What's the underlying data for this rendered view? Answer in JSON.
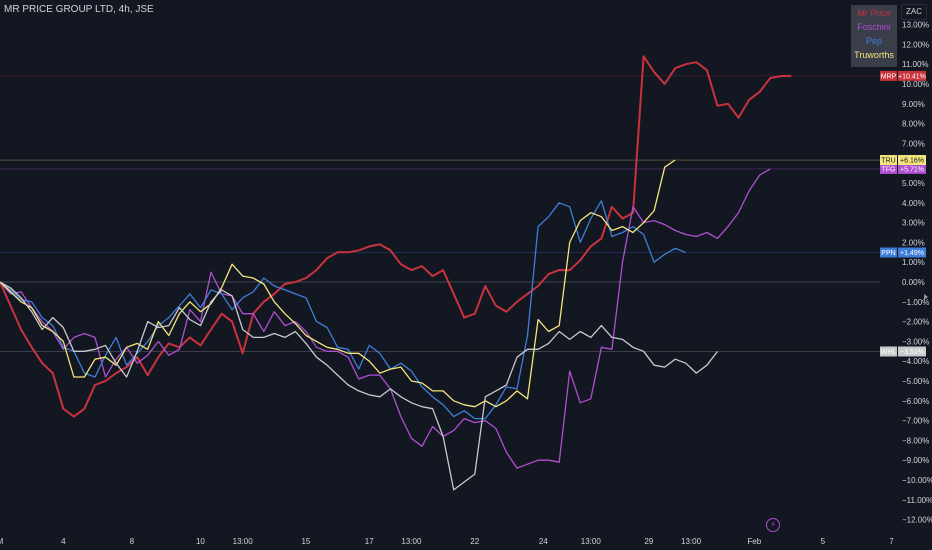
{
  "header": {
    "title": "MR PRICE GROUP LTD, 4h, JSE",
    "currency": "ZAC"
  },
  "legend": {
    "items": [
      "Mr Price",
      "Foschini",
      "Pep",
      "Truworths"
    ]
  },
  "colors": {
    "background": "#131722",
    "mrp": "#c9333d",
    "tfg": "#b04fd0",
    "ppn": "#3f7ed8",
    "tru": "#f4e67c",
    "whl": "#c8c9cc",
    "grid_line": "#9598a1"
  },
  "icons": [
    "flash-icon",
    "cursor-arrow-icon"
  ],
  "chart_data": {
    "type": "line",
    "title": "",
    "xlabel": "",
    "ylabel": "",
    "ylim": [
      -12.5,
      13.5
    ],
    "y_ticks": [
      13,
      12,
      11,
      10,
      9,
      8,
      7,
      6,
      5,
      4,
      3,
      2,
      1,
      0,
      -1,
      -2,
      -3,
      -4,
      -5,
      -6,
      -7,
      -8,
      -9,
      -10,
      -11,
      -12
    ],
    "y_tick_labels": [
      "13.00%",
      "12.00%",
      "11.00%",
      "10.00%",
      "9.00%",
      "8.00%",
      "7.00%",
      "6.00%",
      "5.00%",
      "4.00%",
      "3.00%",
      "2.00%",
      "1.00%",
      "0.00%",
      "−1.00%",
      "−2.00%",
      "−3.00%",
      "−4.00%",
      "−5.00%",
      "−6.00%",
      "−7.00%",
      "−8.00%",
      "−9.00%",
      "−10.00%",
      "−11.00%",
      "−12.00%"
    ],
    "x_ticks": [
      {
        "label": "M",
        "bar": 0
      },
      {
        "label": "4",
        "bar": 6
      },
      {
        "label": "8",
        "bar": 12.5
      },
      {
        "label": "10",
        "bar": 19
      },
      {
        "label": "13:00",
        "bar": 23
      },
      {
        "label": "15",
        "bar": 29
      },
      {
        "label": "17",
        "bar": 35
      },
      {
        "label": "13:00",
        "bar": 39
      },
      {
        "label": "22",
        "bar": 45
      },
      {
        "label": "24",
        "bar": 51.5
      },
      {
        "label": "13:00",
        "bar": 56
      },
      {
        "label": "29",
        "bar": 61.5
      },
      {
        "label": "13:00",
        "bar": 65.5
      },
      {
        "label": "Feb",
        "bar": 71.5
      },
      {
        "label": "5",
        "bar": 78
      },
      {
        "label": "7",
        "bar": 84.5
      }
    ],
    "zero_line": 0,
    "series": [
      {
        "name": "Mr Price",
        "symbol": "MRP",
        "last_label": "+10.41%",
        "key": "mrp",
        "values": [
          0,
          -1.2,
          -2.4,
          -3.3,
          -4.1,
          -4.6,
          -6.4,
          -6.8,
          -6.4,
          -5.2,
          -5.0,
          -4.6,
          -4.3,
          -3.8,
          -4.7,
          -3.8,
          -3.1,
          -3.3,
          -2.8,
          -3.2,
          -2.4,
          -1.6,
          -2.0,
          -3.6,
          -1.6,
          -1.0,
          -0.6,
          -0.1,
          0,
          0.2,
          0.6,
          1.2,
          1.5,
          1.5,
          1.6,
          1.8,
          1.9,
          1.6,
          0.9,
          0.6,
          0.8,
          0.3,
          0.6,
          -0.6,
          -1.8,
          -1.6,
          -0.2,
          -1.2,
          -1.5,
          -1.0,
          -0.6,
          -0.2,
          0.4,
          0.6,
          0.6,
          1.1,
          1.8,
          2.2,
          3.8,
          3.2,
          3.5,
          11.4,
          10.6,
          10.0,
          10.8,
          11.0,
          11.1,
          10.7,
          8.9,
          9.0,
          8.3,
          9.2,
          9.6,
          10.3,
          10.4,
          10.41
        ]
      },
      {
        "name": "Foschini",
        "symbol": "TFG",
        "last_label": "+5.71%",
        "key": "tfg",
        "values": [
          0,
          -0.6,
          -0.5,
          -1.3,
          -2.0,
          -2.5,
          -3.4,
          -2.8,
          -2.6,
          -2.8,
          -4.8,
          -3.9,
          -3.3,
          -4.1,
          -3.7,
          -3.0,
          -3.7,
          -3.4,
          -1.4,
          -2.0,
          0.5,
          -0.6,
          -0.7,
          -1.6,
          -1.6,
          -2.5,
          -1.5,
          -2.2,
          -2.0,
          -2.5,
          -3.3,
          -3.5,
          -3.5,
          -3.8,
          -4.9,
          -4.7,
          -4.7,
          -5.4,
          -6.8,
          -7.9,
          -8.3,
          -7.3,
          -7.8,
          -7.5,
          -6.9,
          -7.1,
          -7.0,
          -7.4,
          -8.6,
          -9.4,
          -9.2,
          -9.0,
          -9.0,
          -9.1,
          -4.5,
          -6.1,
          -5.9,
          -3.3,
          -3.4,
          1.0,
          3.8,
          3.0,
          3.1,
          2.9,
          2.6,
          2.4,
          2.3,
          2.5,
          2.2,
          2.8,
          3.5,
          4.6,
          5.4,
          5.71
        ]
      },
      {
        "name": "Pep",
        "symbol": "PPN",
        "last_label": "+1.49%",
        "key": "ppn",
        "values": [
          0,
          -0.4,
          -0.9,
          -1.0,
          -1.8,
          -2.2,
          -3.3,
          -3.5,
          -4.6,
          -4.8,
          -3.7,
          -2.8,
          -4.2,
          -3.6,
          -3.0,
          -2.2,
          -1.8,
          -1.2,
          -0.6,
          -1.3,
          -0.4,
          -0.6,
          -1.4,
          -0.8,
          -0.5,
          0.2,
          -0.2,
          -0.4,
          -0.6,
          -0.8,
          -2.0,
          -2.3,
          -3.3,
          -3.4,
          -4.4,
          -3.2,
          -3.6,
          -4.4,
          -4.1,
          -4.5,
          -5.3,
          -5.8,
          -6.2,
          -6.8,
          -6.5,
          -6.9,
          -6.9,
          -6.2,
          -5.3,
          -5.4,
          -2.7,
          2.8,
          3.3,
          4.0,
          3.8,
          2.0,
          3.2,
          4.1,
          2.3,
          2.5,
          2.8,
          2.4,
          1.0,
          1.4,
          1.7,
          1.49
        ]
      },
      {
        "name": "Truworths",
        "symbol": "TRU",
        "last_label": "+6.16%",
        "key": "tru",
        "values": [
          0,
          -0.5,
          -1.0,
          -1.3,
          -2.2,
          -2.5,
          -3.0,
          -4.8,
          -4.8,
          -3.9,
          -3.8,
          -4.2,
          -3.3,
          -3.1,
          -3.4,
          -2.0,
          -2.7,
          -1.6,
          -1.0,
          -1.5,
          -1.1,
          -0.3,
          0.9,
          0.3,
          0.2,
          -0.1,
          -1.0,
          -1.6,
          -2.1,
          -2.7,
          -3.0,
          -3.3,
          -3.4,
          -3.6,
          -3.6,
          -4.0,
          -4.6,
          -4.4,
          -4.3,
          -5.0,
          -5.1,
          -5.5,
          -5.5,
          -6.0,
          -6.2,
          -6.3,
          -6.0,
          -6.3,
          -6.0,
          -5.5,
          -5.9,
          -1.9,
          -2.5,
          -2.2,
          2.0,
          3.1,
          3.5,
          3.3,
          2.6,
          2.8,
          2.5,
          3.0,
          3.6,
          5.8,
          6.16
        ]
      },
      {
        "name": "",
        "symbol": "WHL",
        "last_label": "−3.51%",
        "key": "whl",
        "values": [
          0,
          -0.3,
          -0.8,
          -1.5,
          -2.4,
          -1.8,
          -2.3,
          -3.5,
          -3.5,
          -3.4,
          -3.2,
          -4.1,
          -4.8,
          -3.5,
          -2.0,
          -2.3,
          -2.2,
          -1.3,
          -1.9,
          -2.2,
          -1.0,
          -0.4,
          -0.7,
          -2.4,
          -2.8,
          -2.8,
          -2.6,
          -2.8,
          -2.5,
          -3.1,
          -3.8,
          -4.2,
          -4.7,
          -5.2,
          -5.5,
          -5.7,
          -5.8,
          -5.4,
          -5.8,
          -6.1,
          -6.3,
          -6.4,
          -7.8,
          -10.5,
          -10.1,
          -9.7,
          -5.8,
          -5.5,
          -5.2,
          -3.8,
          -3.4,
          -3.4,
          -3.1,
          -2.5,
          -2.9,
          -2.5,
          -2.8,
          -2.2,
          -2.8,
          -2.9,
          -3.3,
          -3.5,
          -4.2,
          -4.3,
          -3.9,
          -4.1,
          -4.6,
          -4.2,
          -3.51
        ]
      }
    ]
  }
}
